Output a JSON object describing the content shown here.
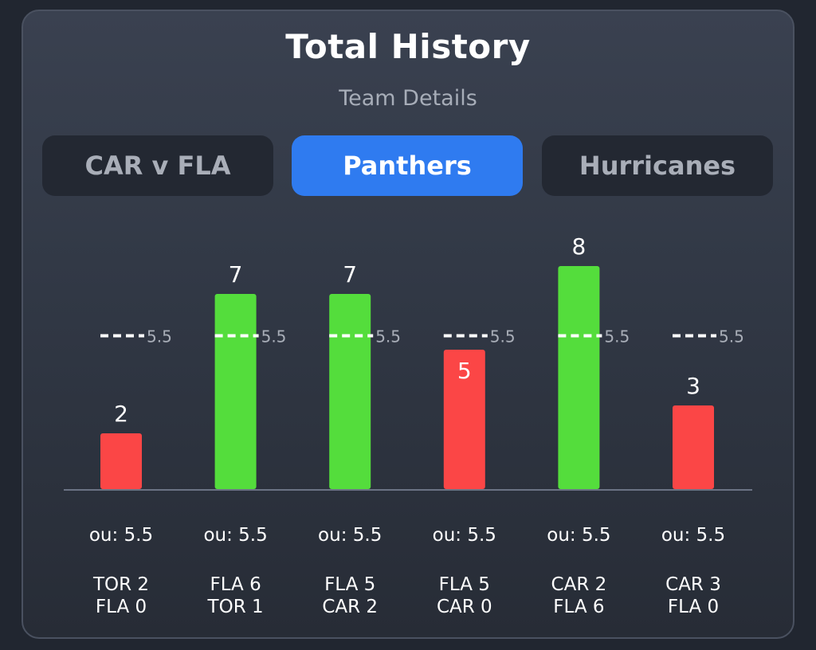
{
  "header": {
    "title": "Total History",
    "subtitle": "Team Details"
  },
  "tabs": [
    {
      "label": "CAR v FLA",
      "active": false
    },
    {
      "label": "Panthers",
      "active": true
    },
    {
      "label": "Hurricanes",
      "active": false
    }
  ],
  "colors": {
    "over": "#54dd3c",
    "under": "#fb4646",
    "accent": "#2f7bf0",
    "baseline": "#6b7384",
    "line_marker": "#ffffff"
  },
  "chart_data": {
    "type": "bar",
    "title": "",
    "xlabel": "",
    "ylabel": "",
    "ylim": [
      0,
      8
    ],
    "threshold": 5.5,
    "threshold_label": "5.5",
    "values": [
      2,
      7,
      7,
      5,
      8,
      3
    ],
    "results": [
      "under",
      "over",
      "over",
      "under",
      "over",
      "under"
    ],
    "ou_labels": [
      "ou: 5.5",
      "ou: 5.5",
      "ou: 5.5",
      "ou: 5.5",
      "ou: 5.5",
      "ou: 5.5"
    ],
    "categories": [
      {
        "line1": "TOR 2",
        "line2": "FLA 0"
      },
      {
        "line1": "FLA 6",
        "line2": "TOR 1"
      },
      {
        "line1": "FLA 5",
        "line2": "CAR 2"
      },
      {
        "line1": "FLA 5",
        "line2": "CAR 0"
      },
      {
        "line1": "CAR 2",
        "line2": "FLA 6"
      },
      {
        "line1": "CAR 3",
        "line2": "FLA 0"
      }
    ]
  }
}
